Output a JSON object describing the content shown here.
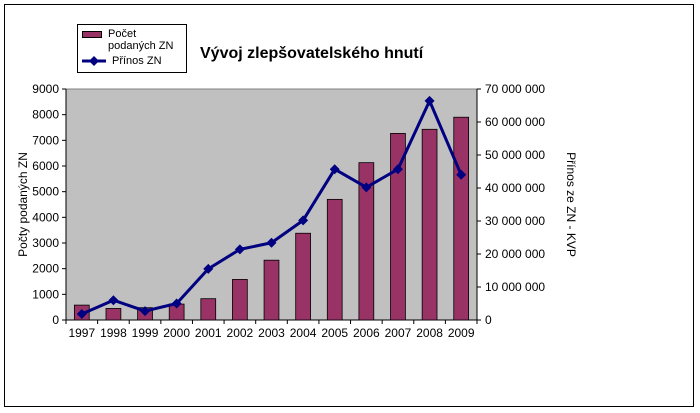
{
  "chart_data": {
    "type": "bar",
    "title": "Vývoj zlepšovatelského hnutí",
    "categories": [
      "1997",
      "1998",
      "1999",
      "2000",
      "2001",
      "2002",
      "2003",
      "2004",
      "2005",
      "2006",
      "2007",
      "2008",
      "2009"
    ],
    "series": [
      {
        "name": "Počet podaných ZN",
        "type": "bar",
        "axis": "left",
        "values": [
          580,
          450,
          480,
          620,
          830,
          1580,
          2330,
          3380,
          4700,
          6130,
          7270,
          7430,
          7900
        ]
      },
      {
        "name": "Přínos ZN",
        "type": "line",
        "axis": "right",
        "values": [
          1800000,
          6000000,
          2700000,
          5000000,
          15500000,
          21400000,
          23400000,
          30200000,
          45700000,
          40200000,
          45700000,
          66400000,
          44000000
        ]
      }
    ],
    "y_left": {
      "label": "Počty podaných ZN",
      "ylim": [
        0,
        9000
      ],
      "ticks": [
        "0",
        "1000",
        "2000",
        "3000",
        "4000",
        "5000",
        "6000",
        "7000",
        "8000",
        "9000"
      ]
    },
    "y_right": {
      "label": "Přínos ze ZN - KVP",
      "ylim": [
        0,
        70000000
      ],
      "ticks": [
        "0",
        "10 000 000",
        "20 000 000",
        "30 000 000",
        "40 000 000",
        "50 000 000",
        "60 000 000",
        "70 000 000"
      ]
    },
    "legend_position": "top-left",
    "grid": false,
    "colors": {
      "bar": "#993366",
      "line": "#000080",
      "plot_background": "#c0c0c0"
    }
  }
}
